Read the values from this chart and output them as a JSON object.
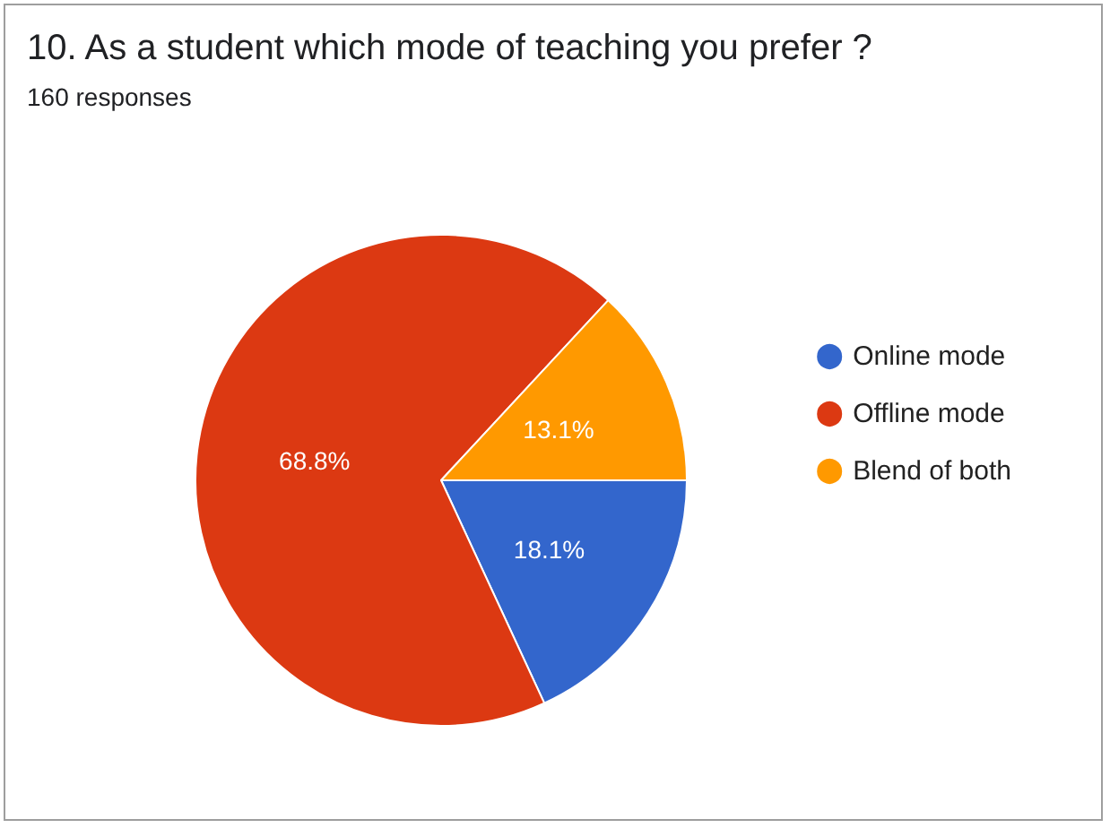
{
  "chart_data": {
    "type": "pie",
    "title": "10. As a student which mode of teaching you prefer ?",
    "subtitle": "160 responses",
    "categories": [
      "Online mode",
      "Offline mode",
      "Blend of both"
    ],
    "values": [
      18.1,
      68.8,
      13.1
    ],
    "colors": [
      "#3366cc",
      "#dc3912",
      "#ff9900"
    ],
    "value_labels": [
      "18.1%",
      "68.8%",
      "13.1%"
    ],
    "legend": "right"
  }
}
